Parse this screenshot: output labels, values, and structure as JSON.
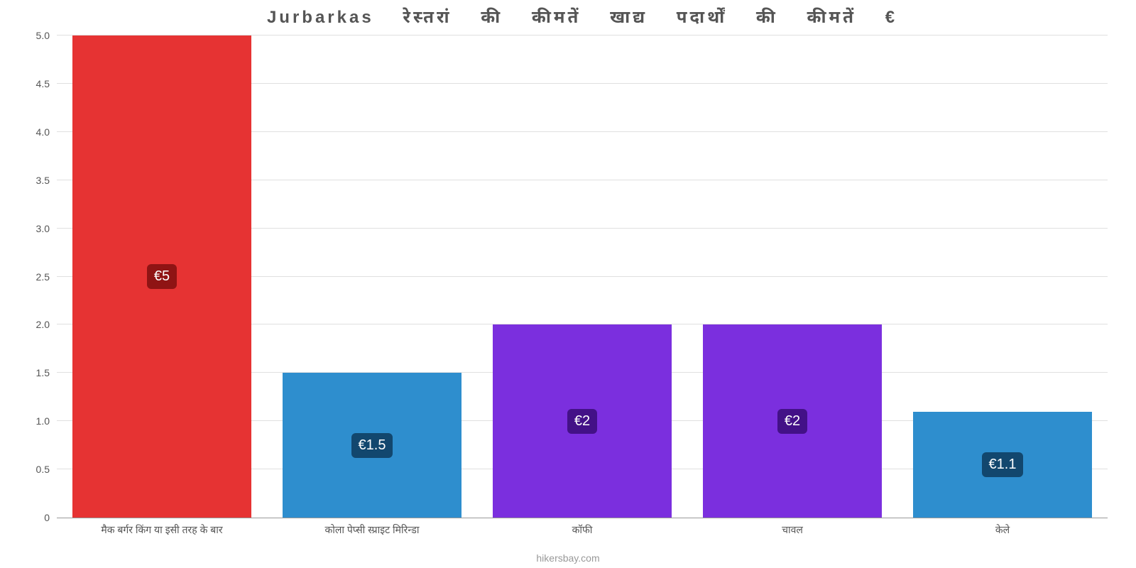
{
  "chart": {
    "type": "bar",
    "title": "Jurbarkas रेस्तरां की कीमतें खाद्य पदार्थों की कीमतें €",
    "title_fontsize": 24,
    "title_color": "#555555",
    "background_color": "#ffffff",
    "grid_color": "#e0e0e0",
    "axis_color": "#999999",
    "ylim_min": 0,
    "ylim_max": 5.0,
    "ytick_step": 0.5,
    "yticks": [
      "0",
      "0.5",
      "1.0",
      "1.5",
      "2.0",
      "2.5",
      "3.0",
      "3.5",
      "4.0",
      "4.5",
      "5.0"
    ],
    "tick_fontsize": 14,
    "tick_color": "#555555",
    "bar_width_pct": 85,
    "categories": [
      "मैक बर्गर किंग या इसी तरह के बार",
      "कोला पेप्सी स्प्राइट मिरिन्डा",
      "कॉफी",
      "चावल",
      "केले"
    ],
    "values": [
      5.0,
      1.5,
      2.0,
      2.0,
      1.1
    ],
    "value_labels": [
      "€5",
      "€1.5",
      "€2",
      "€2",
      "€1.1"
    ],
    "bar_colors": [
      "#e63333",
      "#2e8ece",
      "#7b2fde",
      "#7b2fde",
      "#2e8ece"
    ],
    "label_bg_colors": [
      "#8f1414",
      "#12476e",
      "#431187",
      "#431187",
      "#12476e"
    ],
    "label_text_color": "#ffffff",
    "label_fontsize": 20,
    "attribution": "hikersbay.com",
    "attribution_color": "#999999"
  }
}
